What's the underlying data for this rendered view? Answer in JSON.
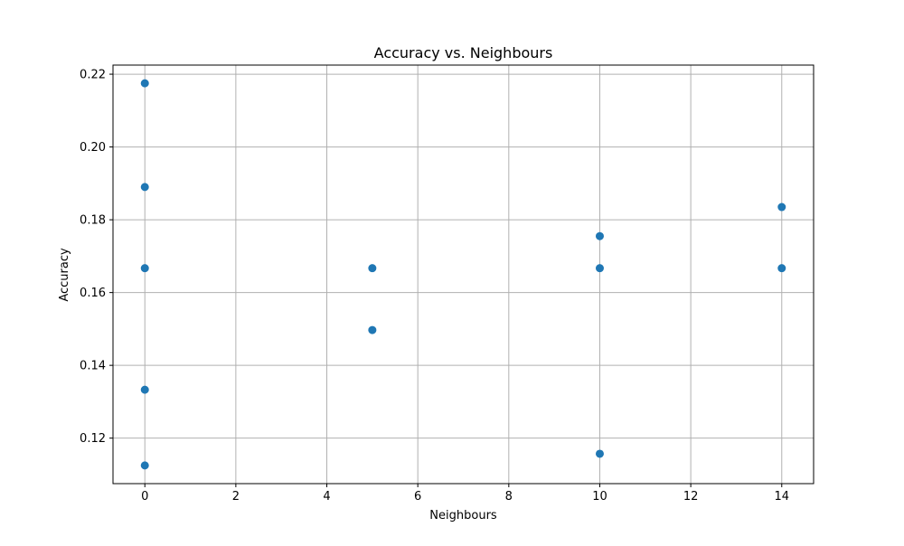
{
  "chart_data": {
    "type": "scatter",
    "title": "Accuracy vs. Neighbours",
    "xlabel": "Neighbours",
    "ylabel": "Accuracy",
    "xlim": [
      -0.7,
      14.7
    ],
    "ylim": [
      0.1075,
      0.2225
    ],
    "xticks": [
      0,
      2,
      4,
      6,
      8,
      10,
      12,
      14
    ],
    "yticks": [
      0.12,
      0.14,
      0.16,
      0.18,
      0.2,
      0.22
    ],
    "xtick_labels": [
      "0",
      "2",
      "4",
      "6",
      "8",
      "10",
      "12",
      "14"
    ],
    "ytick_labels": [
      "0.12",
      "0.14",
      "0.16",
      "0.18",
      "0.20",
      "0.22"
    ],
    "grid": true,
    "marker_color": "#1f77b4",
    "points": [
      {
        "x": 0,
        "y": 0.2175
      },
      {
        "x": 0,
        "y": 0.189
      },
      {
        "x": 0,
        "y": 0.1667
      },
      {
        "x": 0,
        "y": 0.1333
      },
      {
        "x": 0,
        "y": 0.1125
      },
      {
        "x": 5,
        "y": 0.1667
      },
      {
        "x": 5,
        "y": 0.1497
      },
      {
        "x": 10,
        "y": 0.1755
      },
      {
        "x": 10,
        "y": 0.1667
      },
      {
        "x": 10,
        "y": 0.1157
      },
      {
        "x": 14,
        "y": 0.1835
      },
      {
        "x": 14,
        "y": 0.1667
      }
    ]
  }
}
